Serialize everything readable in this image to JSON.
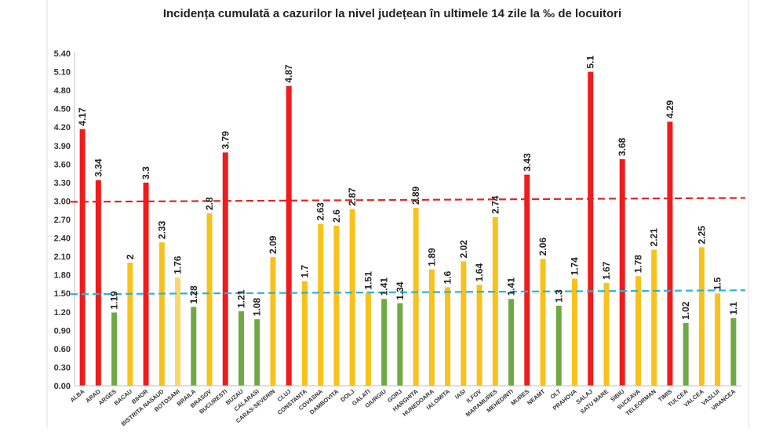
{
  "chart_data": {
    "type": "bar",
    "title": "Incidența cumulată a cazurilor la nivel județean în ultimele 14 zile la ‰ de locuitori",
    "xlabel": "",
    "ylabel": "",
    "ylim": [
      0,
      5.4
    ],
    "yticks": [
      "0.00",
      "0.30",
      "0.60",
      "0.90",
      "1.20",
      "1.50",
      "1.80",
      "2.10",
      "2.40",
      "2.70",
      "3.00",
      "3.30",
      "3.60",
      "3.90",
      "4.20",
      "4.50",
      "4.80",
      "5.10",
      "5.40"
    ],
    "grid": false,
    "legend": "none",
    "categories": [
      "ALBA",
      "ARAD",
      "ARGES",
      "BACAU",
      "BIHOR",
      "BISTRITA NASAUD",
      "BOTOSANI",
      "BRAILA",
      "BRASOV",
      "BUCURESTI",
      "BUZAU",
      "CALARASI",
      "CARAS-SEVERIN",
      "CLUJ",
      "CONSTANTA",
      "COVASNA",
      "DAMBOVITA",
      "DOLJ",
      "GALATI",
      "GIURGIU",
      "GORJ",
      "HARGHITA",
      "HUNEDOARA",
      "IALOMITA",
      "IASI",
      "ILFOV",
      "MARAMURES",
      "MEHEDINTI",
      "MURES",
      "NEAMT",
      "OLT",
      "PRAHOVA",
      "SALAJ",
      "SATU MARE",
      "SIBIU",
      "SUCEAVA",
      "TELEORMAN",
      "TIMIS",
      "TULCEA",
      "VALCEA",
      "VASLUI",
      "VRANCEA"
    ],
    "values": [
      4.17,
      3.34,
      1.19,
      2,
      3.3,
      2.33,
      1.76,
      1.28,
      2.8,
      3.79,
      1.21,
      1.08,
      2.09,
      4.87,
      1.7,
      2.63,
      2.6,
      2.87,
      1.51,
      1.41,
      1.34,
      2.89,
      1.89,
      1.6,
      2.02,
      1.64,
      2.74,
      1.41,
      3.43,
      2.06,
      1.3,
      1.74,
      5.1,
      1.67,
      3.68,
      1.78,
      2.21,
      4.29,
      1.02,
      2.25,
      1.5,
      1.1
    ],
    "value_labels": [
      "4.17",
      "3.34",
      "1.19",
      "2",
      "3.3",
      "2.33",
      "1.76",
      "1.28",
      "2.8",
      "3.79",
      "1.21",
      "1.08",
      "2.09",
      "4.87",
      "1.7",
      "2.63",
      "2.6",
      "2.87",
      "1.51",
      "1.41",
      "1.34",
      "2.89",
      "1.89",
      "1.6",
      "2.02",
      "1.64",
      "2.74",
      "1.41",
      "3.43",
      "2.06",
      "1.3",
      "1.74",
      "5.1",
      "1.67",
      "3.68",
      "1.78",
      "2.21",
      "4.29",
      "1.02",
      "2.25",
      "1.5",
      "1.1"
    ],
    "bar_colors": [
      "#ee1c1c",
      "#ee1c1c",
      "#70a845",
      "#f8c21c",
      "#ee1c1c",
      "#f8c21c",
      "#f8d86a",
      "#70a845",
      "#f8c21c",
      "#ee1c1c",
      "#70a845",
      "#70a845",
      "#f8c21c",
      "#ee1c1c",
      "#f8c21c",
      "#f8c21c",
      "#f8c21c",
      "#f8c21c",
      "#f8c21c",
      "#70a845",
      "#70a845",
      "#f8c21c",
      "#f8c21c",
      "#f8c21c",
      "#f8c21c",
      "#f8c21c",
      "#f8c21c",
      "#70a845",
      "#ee1c1c",
      "#f8c21c",
      "#70a845",
      "#f8c21c",
      "#ee1c1c",
      "#f8c21c",
      "#ee1c1c",
      "#f8c21c",
      "#f8c21c",
      "#ee1c1c",
      "#70a845",
      "#f8c21c",
      "#f8c21c",
      "#70a845"
    ],
    "thresholds": [
      {
        "value": 3.0,
        "color": "#e02424",
        "style": "dashed"
      },
      {
        "value": 1.5,
        "color": "#2bb3d9",
        "style": "dashed"
      }
    ]
  }
}
